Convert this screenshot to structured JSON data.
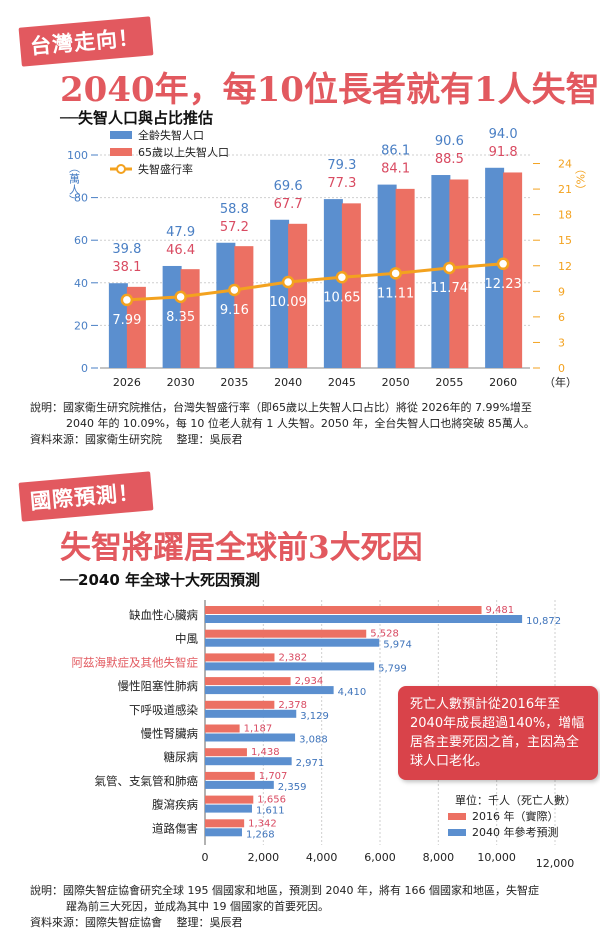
{
  "section1": {
    "tag": "台灣走向！",
    "headline_pre": "2040",
    "headline_mid": "年，每",
    "headline_num1": "10",
    "headline_mid2": "位長者就有",
    "headline_num2": "1",
    "headline_post": "人失智",
    "subhead": "──失智人口與占比推估",
    "note_line1": "說明：國家衛生研究院推估，台灣失智盛行率（即65歲以上失智人口占比）將從 2026年的 7.99%增至",
    "note_line2": "2040 年的 10.09%，每 10 位老人就有 1 人失智。2050 年，全台失智人口也將突破 85萬人。",
    "source": "資料來源：國家衛生研究院　 整理：吳辰君"
  },
  "section2": {
    "tag": "國際預測！",
    "headline_pre": "失智將躍居全球前",
    "headline_num": "3",
    "headline_post": "大死因",
    "subhead": "──2040 年全球十大死因預測",
    "callout": "死亡人數預計從2016年至2040年成長超過140%，增幅居各主要死因之首，主因為全球人口老化。",
    "note_line1": "說明：國際失智症協會研究全球 195 個國家和地區，預測到 2040 年，將有 166 個國家和地區，失智症",
    "note_line2": "躍為前三大死因，並成為其中 19 個國家的首要死因。",
    "source": "資料來源：國際失智症協會　 整理：吳辰君"
  },
  "colors": {
    "blue": "#5b8fcf",
    "salmon": "#ec7063",
    "orange": "#f3a21f",
    "red": "#e2595f",
    "grid": "#cfcfcf"
  },
  "chart_data": [
    {
      "type": "bar",
      "title": "失智人口與占比推估",
      "categories": [
        "2026",
        "2030",
        "2035",
        "2040",
        "2045",
        "2050",
        "2055",
        "2060"
      ],
      "x_unit": "（年）",
      "y_left_label": "（萬人）",
      "y_right_label": "（%）",
      "ylim_left": [
        0,
        100
      ],
      "yticks_left": [
        "0",
        "20",
        "40",
        "60",
        "80",
        "100"
      ],
      "ylim_right": [
        0,
        25
      ],
      "yticks_right": [
        "0",
        "3",
        "6",
        "9",
        "12",
        "15",
        "18",
        "21",
        "24"
      ],
      "series": [
        {
          "name": "全齡失智人口",
          "kind": "bar",
          "values": [
            39.8,
            47.9,
            58.8,
            69.6,
            79.3,
            86.1,
            90.6,
            94.0
          ],
          "labels": [
            "39.8",
            "47.9",
            "58.8",
            "69.6",
            "79.3",
            "86.1",
            "90.6",
            "94.0"
          ]
        },
        {
          "name": "65歲以上失智人口",
          "kind": "bar",
          "values": [
            38.1,
            46.4,
            57.2,
            67.7,
            77.3,
            84.1,
            88.5,
            91.8
          ],
          "labels": [
            "38.1",
            "46.4",
            "57.2",
            "67.7",
            "77.3",
            "84.1",
            "88.5",
            "91.8"
          ]
        },
        {
          "name": "失智盛行率",
          "kind": "line",
          "axis": "right",
          "values": [
            7.99,
            8.35,
            9.16,
            10.09,
            10.65,
            11.11,
            11.74,
            12.23
          ],
          "labels": [
            "7.99",
            "8.35",
            "9.16",
            "10.09",
            "10.65",
            "11.11",
            "11.74",
            "12.23"
          ]
        }
      ],
      "grid": true,
      "legend": "top-left"
    },
    {
      "type": "bar",
      "orientation": "horizontal",
      "title": "2040 年全球十大死因預測",
      "categories": [
        "缺血性心臟病",
        "中風",
        "阿茲海默症及其他失智症",
        "慢性阻塞性肺病",
        "下呼吸道感染",
        "慢性腎臟病",
        "糖尿病",
        "氣管、支氣管和肺癌",
        "腹瀉疾病",
        "道路傷害"
      ],
      "highlight_category": "阿茲海默症及其他失智症",
      "xlim": [
        0,
        12000
      ],
      "xticks": [
        "0",
        "2,000",
        "4,000",
        "6,000",
        "8,000",
        "10,000",
        "12,000"
      ],
      "unit_label": "單位：千人（死亡人數）",
      "series": [
        {
          "name": "2016 年（實際）",
          "values": [
            9481,
            5528,
            2382,
            2934,
            2378,
            1187,
            1438,
            1707,
            1656,
            1342
          ],
          "labels": [
            "9,481",
            "5,528",
            "2,382",
            "2,934",
            "2,378",
            "1,187",
            "1,438",
            "1,707",
            "1,656",
            "1,342"
          ]
        },
        {
          "name": "2040 年參考預測",
          "values": [
            10872,
            5974,
            5799,
            4410,
            3129,
            3088,
            2971,
            2359,
            1611,
            1268
          ],
          "labels": [
            "10,872",
            "5,974",
            "5,799",
            "4,410",
            "3,129",
            "3,088",
            "2,971",
            "2,359",
            "1,611",
            "1,268"
          ]
        }
      ],
      "grid": true,
      "legend": "bottom-right"
    }
  ]
}
